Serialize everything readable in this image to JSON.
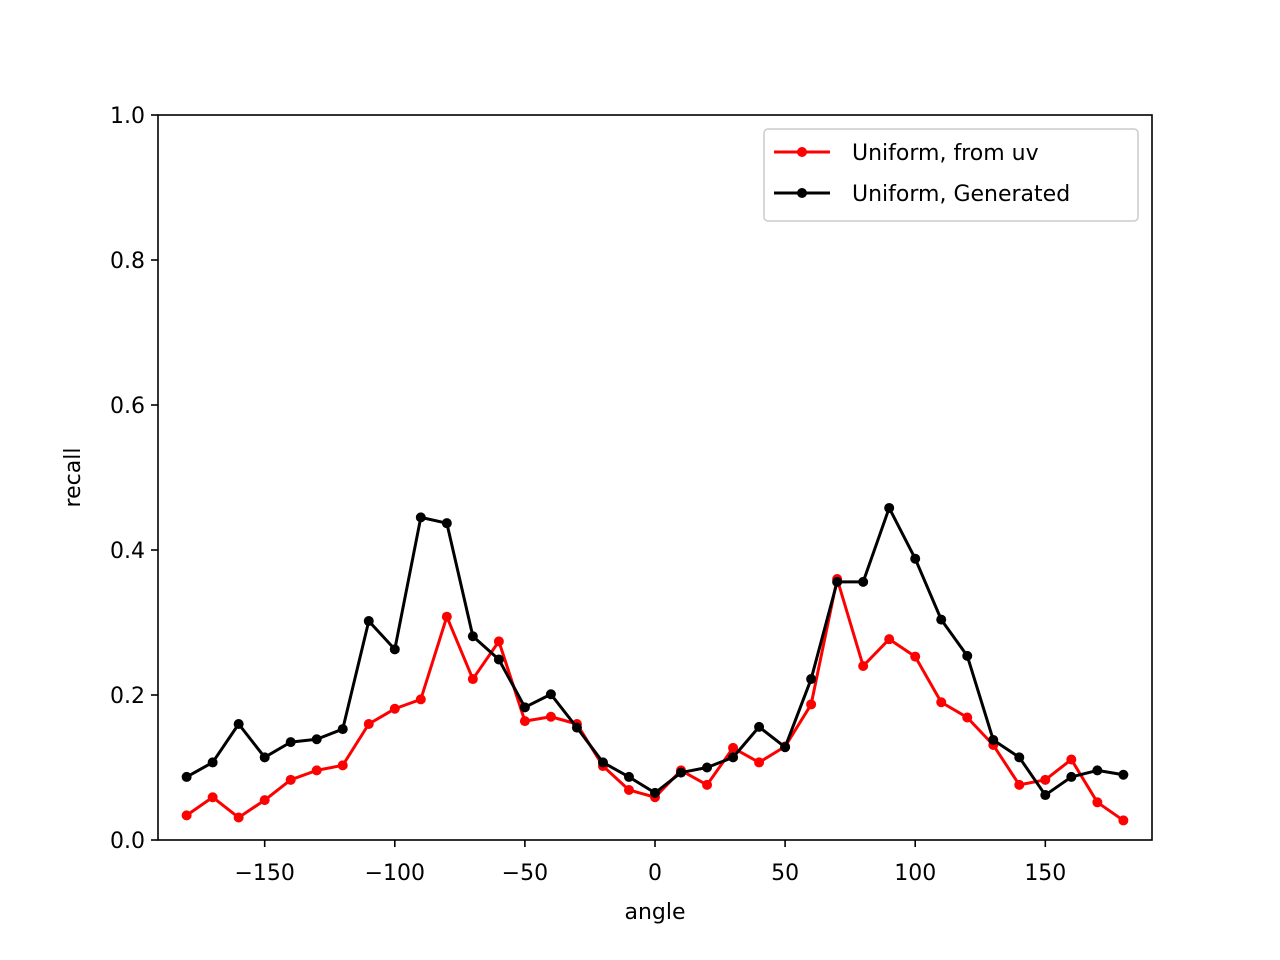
{
  "chart_data": {
    "type": "line",
    "title": "",
    "xlabel": "angle",
    "ylabel": "recall",
    "xlim": [
      -191,
      191
    ],
    "ylim": [
      0,
      1.0
    ],
    "xticks": [
      -150,
      -100,
      -50,
      0,
      50,
      100,
      150
    ],
    "xtick_labels": [
      "−150",
      "−100",
      "−50",
      "0",
      "50",
      "100",
      "150"
    ],
    "yticks": [
      0,
      0.2,
      0.4,
      0.6,
      0.8,
      1.0
    ],
    "ytick_labels": [
      "0.0",
      "0.2",
      "0.4",
      "0.6",
      "0.8",
      "1.0"
    ],
    "grid": false,
    "legend_position": "upper right",
    "x": [
      -180,
      -170,
      -160,
      -150,
      -140,
      -130,
      -120,
      -110,
      -100,
      -90,
      -80,
      -70,
      -60,
      -50,
      -40,
      -30,
      -20,
      -10,
      0,
      10,
      20,
      30,
      40,
      50,
      60,
      70,
      80,
      90,
      100,
      110,
      120,
      130,
      140,
      150,
      160,
      170,
      180
    ],
    "series": [
      {
        "name": "Uniform, from uv",
        "color": "#ff0000",
        "values": [
          0.034,
          0.059,
          0.031,
          0.055,
          0.083,
          0.096,
          0.103,
          0.16,
          0.181,
          0.194,
          0.308,
          0.222,
          0.274,
          0.164,
          0.17,
          0.16,
          0.102,
          0.069,
          0.059,
          0.096,
          0.076,
          0.127,
          0.107,
          0.129,
          0.187,
          0.36,
          0.24,
          0.277,
          0.253,
          0.19,
          0.169,
          0.131,
          0.076,
          0.083,
          0.111,
          0.052,
          0.027
        ]
      },
      {
        "name": "Uniform, Generated",
        "color": "#000000",
        "values": [
          0.087,
          0.107,
          0.16,
          0.114,
          0.135,
          0.139,
          0.153,
          0.302,
          0.263,
          0.445,
          0.437,
          0.281,
          0.249,
          0.183,
          0.201,
          0.155,
          0.107,
          0.087,
          0.065,
          0.093,
          0.1,
          0.114,
          0.156,
          0.128,
          0.222,
          0.356,
          0.356,
          0.458,
          0.388,
          0.304,
          0.254,
          0.138,
          0.114,
          0.062,
          0.087,
          0.096,
          0.09
        ]
      }
    ]
  }
}
